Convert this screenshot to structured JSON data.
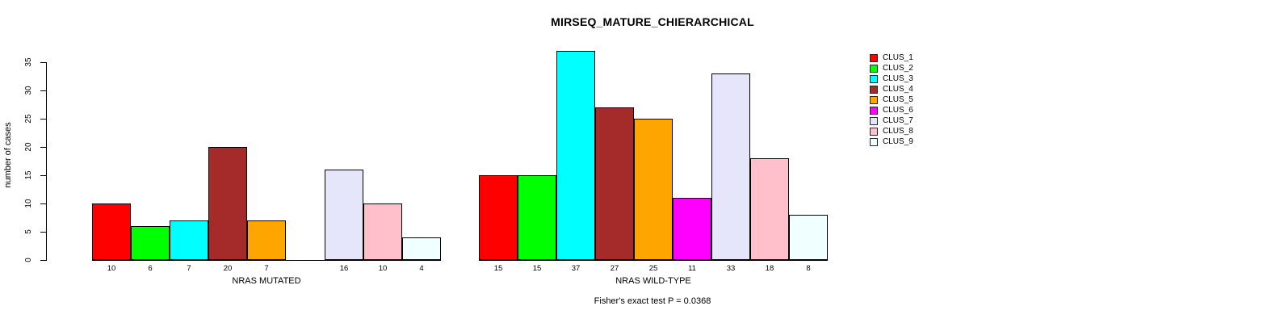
{
  "chart_data": {
    "type": "bar",
    "title": "MIRSEQ_MATURE_CHIERARCHICAL",
    "xlabel": "",
    "ylabel": "number of cases",
    "ylim": [
      0,
      37
    ],
    "yticks": [
      0,
      5,
      10,
      15,
      20,
      25,
      30,
      35
    ],
    "grid": false,
    "legend_position": "right",
    "annotation": "Fisher's exact test P = 0.0368",
    "clusters": [
      "CLUS_1",
      "CLUS_2",
      "CLUS_3",
      "CLUS_4",
      "CLUS_5",
      "CLUS_6",
      "CLUS_7",
      "CLUS_8",
      "CLUS_9"
    ],
    "colors": [
      "#FF0000",
      "#00FF00",
      "#00FFFF",
      "#A52A2A",
      "#FFA500",
      "#FF00FF",
      "#E6E6FA",
      "#FFC0CB",
      "#F0FFFF"
    ],
    "groups": [
      {
        "label": "NRAS MUTATED",
        "values": [
          10,
          6,
          7,
          20,
          7,
          0,
          16,
          10,
          4
        ],
        "bar_labels": [
          "10",
          "6",
          "7",
          "20",
          "7",
          "",
          "16",
          "10",
          "4"
        ]
      },
      {
        "label": "NRAS WILD-TYPE",
        "values": [
          15,
          15,
          37,
          27,
          25,
          11,
          33,
          18,
          8
        ],
        "bar_labels": [
          "15",
          "15",
          "37",
          "27",
          "25",
          "11",
          "33",
          "18",
          "8"
        ]
      }
    ]
  }
}
